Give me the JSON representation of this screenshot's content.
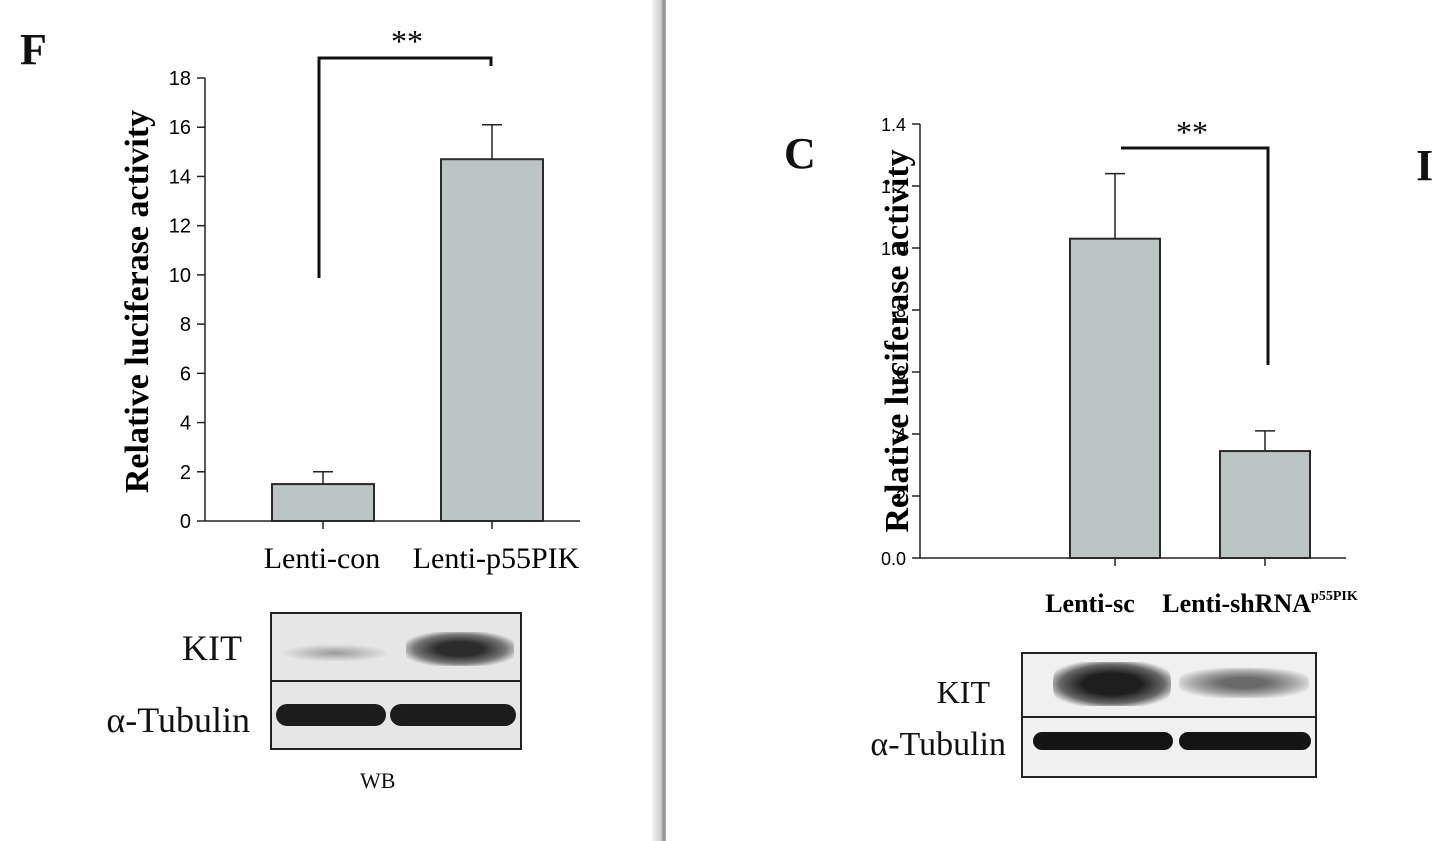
{
  "colors": {
    "bar_fill": "#bac5c4",
    "bar_stroke": "#2a2a2a",
    "axis": "#222222",
    "sig_line": "#111111"
  },
  "panel_F": {
    "letter": "F",
    "chart_data": {
      "type": "bar",
      "categories": [
        "Lenti-con",
        "Lenti-p55PIK"
      ],
      "values": [
        1.5,
        14.7
      ],
      "error_bars": [
        0.5,
        1.4
      ],
      "ylabel": "Relative luciferase activity",
      "xlabel": "",
      "ylim": [
        0,
        18
      ],
      "yticks": [
        0,
        2,
        4,
        6,
        8,
        10,
        12,
        14,
        16,
        18
      ],
      "ytick_labels": [
        "0",
        "2",
        "4",
        "6",
        "8",
        "10",
        "12",
        "14",
        "16",
        "18"
      ],
      "significance": "**",
      "grid": false
    },
    "blot": {
      "labels": [
        "KIT",
        "α-Tubulin"
      ],
      "caption": "WB"
    }
  },
  "panel_C": {
    "letter": "C",
    "chart_data": {
      "type": "bar",
      "categories": [
        "Lenti-sc",
        "Lenti-shRNA"
      ],
      "category_superscripts": [
        "",
        "p55PIK"
      ],
      "values": [
        1.03,
        0.345
      ],
      "error_bars": [
        0.21,
        0.065
      ],
      "ylabel": "Relative luciferase activity",
      "xlabel": "",
      "ylim": [
        0,
        1.4
      ],
      "yticks": [
        0,
        0.2,
        0.4,
        0.6,
        0.8,
        1.0,
        1.2,
        1.4
      ],
      "ytick_labels": [
        "0.0",
        ".2",
        ".4",
        ".6",
        ".8",
        "1.0",
        "1.2",
        "1.4"
      ],
      "significance": "**",
      "grid": false
    },
    "blot": {
      "labels": [
        "KIT",
        "α-Tubulin"
      ]
    }
  },
  "cut_letter": "I"
}
